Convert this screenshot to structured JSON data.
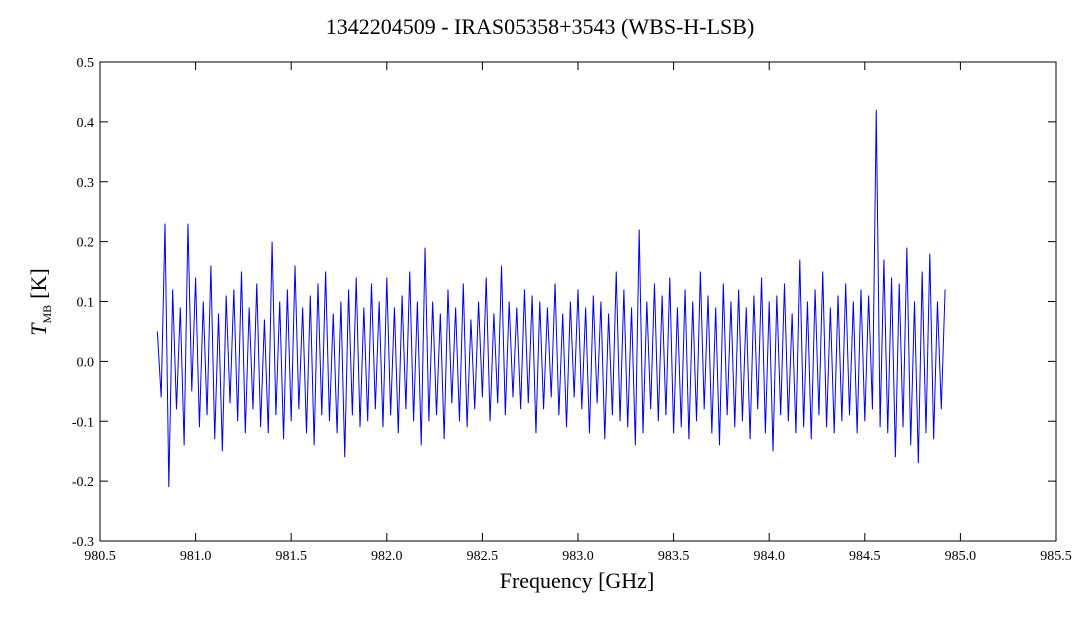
{
  "chart_data": {
    "type": "line",
    "title": "1342204509 - IRAS05358+3543 (WBS-H-LSB)",
    "xlabel": "Frequency [GHz]",
    "ylabel": {
      "symbol": "T",
      "subscript": "MB",
      "unit": "[K]"
    },
    "xlim": [
      980.5,
      985.5
    ],
    "xticks": [
      980.5,
      {
        "value": 981,
        "label": "981.0"
      },
      981.5,
      {
        "value": 982,
        "label": "982.0"
      },
      982.5,
      {
        "value": 983,
        "label": "983.0"
      },
      983.5,
      {
        "value": 984,
        "label": "984.0"
      },
      984.5,
      {
        "value": 985,
        "label": "985.0"
      },
      985.5
    ],
    "ylim": [
      -0.3,
      0.5
    ],
    "yticks": [
      -0.3,
      -0.2,
      -0.1,
      {
        "value": 0,
        "label": "0.0"
      },
      0.1,
      0.2,
      0.3,
      0.4,
      0.5
    ],
    "series": [
      {
        "color": "#0000ee",
        "x": [
          980.8,
          980.82,
          980.84,
          980.86,
          980.88,
          980.9,
          980.92,
          980.94,
          980.96,
          980.98,
          981.0,
          981.02,
          981.04,
          981.06,
          981.08,
          981.1,
          981.12,
          981.14,
          981.16,
          981.18,
          981.2,
          981.22,
          981.24,
          981.26,
          981.28,
          981.3,
          981.32,
          981.34,
          981.36,
          981.38,
          981.4,
          981.42,
          981.44,
          981.46,
          981.48,
          981.5,
          981.52,
          981.54,
          981.56,
          981.58,
          981.6,
          981.62,
          981.64,
          981.66,
          981.68,
          981.7,
          981.72,
          981.74,
          981.76,
          981.78,
          981.8,
          981.82,
          981.84,
          981.86,
          981.88,
          981.9,
          981.92,
          981.94,
          981.96,
          981.98,
          982.0,
          982.02,
          982.04,
          982.06,
          982.08,
          982.1,
          982.12,
          982.14,
          982.16,
          982.18,
          982.2,
          982.22,
          982.24,
          982.26,
          982.28,
          982.3,
          982.32,
          982.34,
          982.36,
          982.38,
          982.4,
          982.42,
          982.44,
          982.46,
          982.48,
          982.5,
          982.52,
          982.54,
          982.56,
          982.58,
          982.6,
          982.62,
          982.64,
          982.66,
          982.68,
          982.7,
          982.72,
          982.74,
          982.76,
          982.78,
          982.8,
          982.82,
          982.84,
          982.86,
          982.88,
          982.9,
          982.92,
          982.94,
          982.96,
          982.98,
          983.0,
          983.02,
          983.04,
          983.06,
          983.08,
          983.1,
          983.12,
          983.14,
          983.16,
          983.18,
          983.2,
          983.22,
          983.24,
          983.26,
          983.28,
          983.3,
          983.32,
          983.34,
          983.36,
          983.38,
          983.4,
          983.42,
          983.44,
          983.46,
          983.48,
          983.5,
          983.52,
          983.54,
          983.56,
          983.58,
          983.6,
          983.62,
          983.64,
          983.66,
          983.68,
          983.7,
          983.72,
          983.74,
          983.76,
          983.78,
          983.8,
          983.82,
          983.84,
          983.86,
          983.88,
          983.9,
          983.92,
          983.94,
          983.96,
          983.98,
          984.0,
          984.02,
          984.04,
          984.06,
          984.08,
          984.1,
          984.12,
          984.14,
          984.16,
          984.18,
          984.2,
          984.22,
          984.24,
          984.26,
          984.28,
          984.3,
          984.32,
          984.34,
          984.36,
          984.38,
          984.4,
          984.42,
          984.44,
          984.46,
          984.48,
          984.5,
          984.52,
          984.54,
          984.56,
          984.58,
          984.6,
          984.62,
          984.64,
          984.66,
          984.68,
          984.7,
          984.72,
          984.74,
          984.76,
          984.78,
          984.8,
          984.82,
          984.84,
          984.86,
          984.88,
          984.9,
          984.92
        ],
        "values": [
          0.05,
          -0.06,
          0.23,
          -0.21,
          0.12,
          -0.08,
          0.09,
          -0.14,
          0.23,
          -0.05,
          0.14,
          -0.11,
          0.1,
          -0.09,
          0.16,
          -0.13,
          0.08,
          -0.15,
          0.11,
          -0.07,
          0.12,
          -0.1,
          0.15,
          -0.12,
          0.09,
          -0.08,
          0.13,
          -0.11,
          0.07,
          -0.12,
          0.2,
          -0.09,
          0.1,
          -0.13,
          0.12,
          -0.1,
          0.16,
          -0.08,
          0.09,
          -0.12,
          0.11,
          -0.14,
          0.13,
          -0.09,
          0.15,
          -0.1,
          0.08,
          -0.12,
          0.1,
          -0.16,
          0.12,
          -0.09,
          0.14,
          -0.11,
          0.09,
          -0.1,
          0.13,
          -0.08,
          0.1,
          -0.11,
          0.14,
          -0.09,
          0.09,
          -0.12,
          0.11,
          -0.08,
          0.15,
          -0.1,
          0.1,
          -0.14,
          0.19,
          -0.1,
          0.1,
          -0.09,
          0.08,
          -0.13,
          0.12,
          -0.07,
          0.09,
          -0.1,
          0.13,
          -0.11,
          0.07,
          -0.08,
          0.1,
          -0.06,
          0.14,
          -0.1,
          0.08,
          -0.07,
          0.16,
          -0.09,
          0.1,
          -0.06,
          0.09,
          -0.08,
          0.12,
          -0.07,
          0.11,
          -0.12,
          0.1,
          -0.08,
          0.09,
          -0.06,
          0.13,
          -0.09,
          0.08,
          -0.11,
          0.1,
          -0.06,
          0.12,
          -0.08,
          0.09,
          -0.12,
          0.11,
          -0.07,
          0.1,
          -0.13,
          0.08,
          -0.09,
          0.15,
          -0.1,
          0.12,
          -0.11,
          0.09,
          -0.14,
          0.22,
          -0.12,
          0.1,
          -0.08,
          0.13,
          -0.1,
          0.11,
          -0.09,
          0.14,
          -0.12,
          0.09,
          -0.11,
          0.12,
          -0.13,
          0.1,
          -0.1,
          0.15,
          -0.08,
          0.11,
          -0.12,
          0.09,
          -0.14,
          0.13,
          -0.09,
          0.1,
          -0.11,
          0.12,
          -0.1,
          0.09,
          -0.13,
          0.11,
          -0.08,
          0.14,
          -0.12,
          0.1,
          -0.15,
          0.11,
          -0.09,
          0.13,
          -0.1,
          0.08,
          -0.12,
          0.17,
          -0.11,
          0.1,
          -0.13,
          0.12,
          -0.09,
          0.15,
          -0.11,
          0.09,
          -0.12,
          0.11,
          -0.1,
          0.13,
          -0.09,
          0.1,
          -0.12,
          0.12,
          -0.1,
          0.11,
          -0.08,
          0.42,
          -0.11,
          0.17,
          -0.12,
          0.14,
          -0.16,
          0.13,
          -0.11,
          0.19,
          -0.14,
          0.1,
          -0.17,
          0.15,
          -0.12,
          0.18,
          -0.13,
          0.1,
          -0.08,
          0.12
        ]
      }
    ]
  }
}
